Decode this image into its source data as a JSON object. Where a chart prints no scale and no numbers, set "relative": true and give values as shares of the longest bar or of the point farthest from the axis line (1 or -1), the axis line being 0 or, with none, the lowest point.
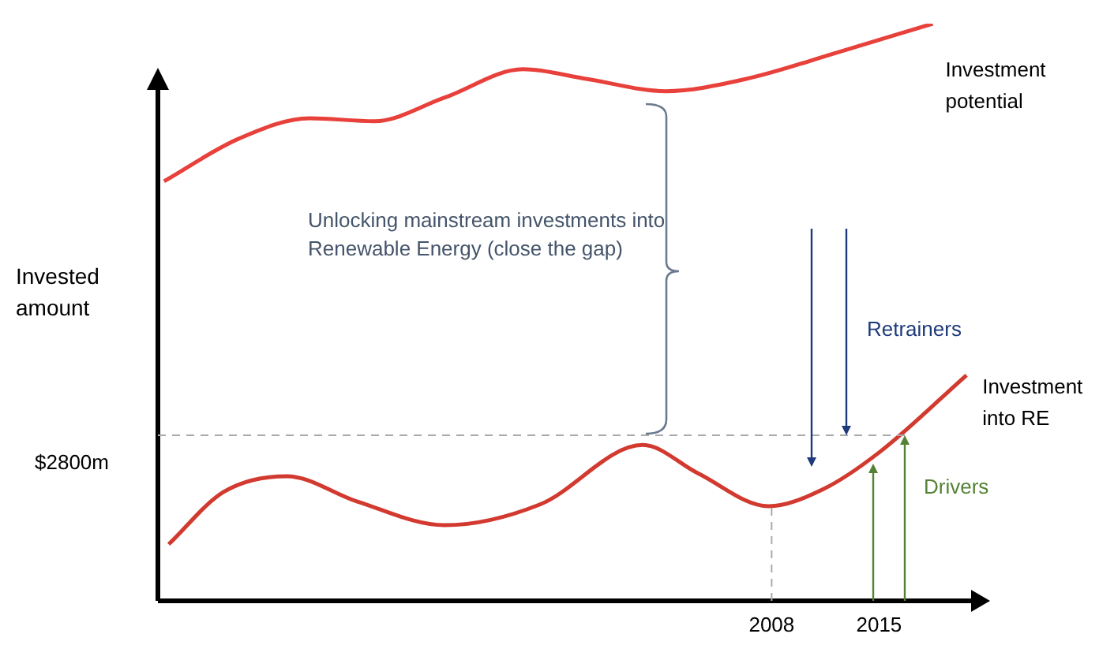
{
  "chart_data": {
    "type": "line",
    "relative": true,
    "ylabel": "Invested amount",
    "xlim": [
      1968,
      2021
    ],
    "xticks": [
      2008,
      2015
    ],
    "grid": false,
    "legend": false,
    "marker": "none",
    "series": [
      {
        "name": "Investment potential",
        "color": "#e8403a",
        "x": [
          1968.4,
          1973.3,
          1977.9,
          1982.1,
          1986.7,
          1991.8,
          1996.0,
          2001.1,
          2006.3,
          2012.4,
          2018.5
        ],
        "values": [
          0.727,
          0.801,
          0.836,
          0.831,
          0.872,
          0.921,
          0.904,
          0.883,
          0.904,
          0.951,
          1
        ]
      },
      {
        "name": "Investment into RE",
        "color": "#d23a30",
        "x": [
          1968.7,
          1972.3,
          1976.4,
          1981.0,
          1986.7,
          1992.9,
          1999.6,
          2003.2,
          2007.8,
          2011.4,
          2015.0,
          2020.7
        ],
        "values": [
          0.098,
          0.189,
          0.216,
          0.172,
          0.131,
          0.167,
          0.27,
          0.221,
          0.164,
          0.194,
          0.257,
          0.391
        ]
      }
    ],
    "ref_lines": [
      {
        "axis": "y",
        "value": 0.287,
        "label": "$2800m",
        "color": "#aaaaaa",
        "line_style": "dashed"
      },
      {
        "axis": "x",
        "value": 2008,
        "color": "#aaaaaa",
        "line_style": "dashed"
      }
    ],
    "annotations": [
      "Unlocking mainstream investments into Renewable Energy (close the gap)",
      "Retrainers",
      "Drivers"
    ]
  }
}
